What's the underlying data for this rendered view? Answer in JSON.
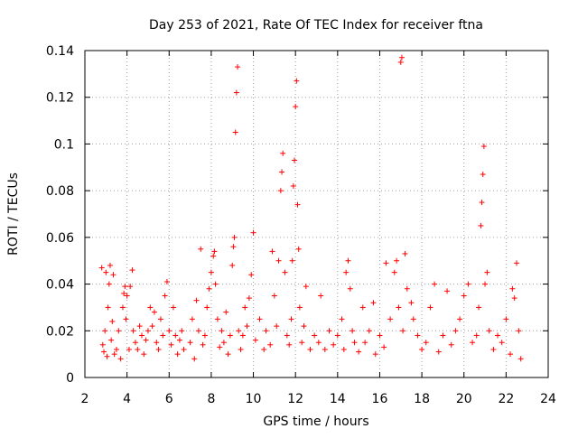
{
  "chart_data": {
    "type": "scatter",
    "title": "Day 253 of 2021, Rate Of TEC Index for receiver ftna",
    "xlabel": "GPS time / hours",
    "ylabel": "ROTI / TECUs",
    "xlim": [
      2,
      24
    ],
    "ylim": [
      0,
      0.14
    ],
    "x_ticks": [
      2,
      4,
      6,
      8,
      10,
      12,
      14,
      16,
      18,
      20,
      22,
      24
    ],
    "y_ticks": [
      0,
      0.02,
      0.04,
      0.06,
      0.08,
      0.1,
      0.12,
      0.14
    ],
    "x_tick_labels": [
      "2",
      "4",
      "6",
      "8",
      "10",
      "12",
      "14",
      "16",
      "18",
      "20",
      "22",
      "24"
    ],
    "y_tick_labels": [
      "0",
      "0.02",
      "0.04",
      "0.06",
      "0.08",
      "0.1",
      "0.12",
      "0.14"
    ],
    "grid": true,
    "legend": "none",
    "marker": "plus",
    "color": "#ff0000",
    "series": [
      {
        "values": [
          [
            2.8,
            0.047
          ],
          [
            2.85,
            0.014
          ],
          [
            2.9,
            0.011
          ],
          [
            2.95,
            0.02
          ],
          [
            3.0,
            0.045
          ],
          [
            3.05,
            0.009
          ],
          [
            3.1,
            0.03
          ],
          [
            3.15,
            0.04
          ],
          [
            3.2,
            0.048
          ],
          [
            3.25,
            0.016
          ],
          [
            3.3,
            0.024
          ],
          [
            3.35,
            0.044
          ],
          [
            3.4,
            0.01
          ],
          [
            3.5,
            0.012
          ],
          [
            3.6,
            0.02
          ],
          [
            3.7,
            0.008
          ],
          [
            3.8,
            0.03
          ],
          [
            3.85,
            0.036
          ],
          [
            3.9,
            0.039
          ],
          [
            3.95,
            0.025
          ],
          [
            4.0,
            0.035
          ],
          [
            4.1,
            0.012
          ],
          [
            4.15,
            0.039
          ],
          [
            4.25,
            0.046
          ],
          [
            4.3,
            0.02
          ],
          [
            4.4,
            0.015
          ],
          [
            4.5,
            0.012
          ],
          [
            4.6,
            0.022
          ],
          [
            4.7,
            0.018
          ],
          [
            4.8,
            0.01
          ],
          [
            4.9,
            0.016
          ],
          [
            5.0,
            0.02
          ],
          [
            5.1,
            0.03
          ],
          [
            5.2,
            0.022
          ],
          [
            5.3,
            0.028
          ],
          [
            5.4,
            0.015
          ],
          [
            5.5,
            0.012
          ],
          [
            5.6,
            0.025
          ],
          [
            5.7,
            0.018
          ],
          [
            5.8,
            0.035
          ],
          [
            5.9,
            0.041
          ],
          [
            6.0,
            0.02
          ],
          [
            6.1,
            0.014
          ],
          [
            6.2,
            0.03
          ],
          [
            6.3,
            0.018
          ],
          [
            6.4,
            0.01
          ],
          [
            6.5,
            0.016
          ],
          [
            6.6,
            0.02
          ],
          [
            6.7,
            0.012
          ],
          [
            7.0,
            0.015
          ],
          [
            7.1,
            0.025
          ],
          [
            7.2,
            0.008
          ],
          [
            7.3,
            0.033
          ],
          [
            7.4,
            0.02
          ],
          [
            7.5,
            0.055
          ],
          [
            7.6,
            0.014
          ],
          [
            7.7,
            0.018
          ],
          [
            7.8,
            0.03
          ],
          [
            7.9,
            0.038
          ],
          [
            8.0,
            0.045
          ],
          [
            8.1,
            0.052
          ],
          [
            8.15,
            0.054
          ],
          [
            8.2,
            0.04
          ],
          [
            8.3,
            0.025
          ],
          [
            8.4,
            0.013
          ],
          [
            8.5,
            0.02
          ],
          [
            8.6,
            0.015
          ],
          [
            8.7,
            0.028
          ],
          [
            8.8,
            0.01
          ],
          [
            8.9,
            0.018
          ],
          [
            9.0,
            0.048
          ],
          [
            9.05,
            0.056
          ],
          [
            9.1,
            0.06
          ],
          [
            9.15,
            0.105
          ],
          [
            9.2,
            0.122
          ],
          [
            9.25,
            0.133
          ],
          [
            9.3,
            0.02
          ],
          [
            9.4,
            0.012
          ],
          [
            9.5,
            0.018
          ],
          [
            9.6,
            0.03
          ],
          [
            9.7,
            0.022
          ],
          [
            9.8,
            0.034
          ],
          [
            9.9,
            0.044
          ],
          [
            10.0,
            0.062
          ],
          [
            10.1,
            0.016
          ],
          [
            10.3,
            0.025
          ],
          [
            10.5,
            0.012
          ],
          [
            10.6,
            0.02
          ],
          [
            10.8,
            0.014
          ],
          [
            10.9,
            0.054
          ],
          [
            11.0,
            0.035
          ],
          [
            11.1,
            0.022
          ],
          [
            11.2,
            0.05
          ],
          [
            11.3,
            0.08
          ],
          [
            11.35,
            0.088
          ],
          [
            11.4,
            0.096
          ],
          [
            11.5,
            0.045
          ],
          [
            11.6,
            0.018
          ],
          [
            11.7,
            0.014
          ],
          [
            11.8,
            0.025
          ],
          [
            11.85,
            0.05
          ],
          [
            11.9,
            0.082
          ],
          [
            11.95,
            0.093
          ],
          [
            12.0,
            0.116
          ],
          [
            12.05,
            0.127
          ],
          [
            12.1,
            0.074
          ],
          [
            12.15,
            0.055
          ],
          [
            12.2,
            0.03
          ],
          [
            12.3,
            0.015
          ],
          [
            12.4,
            0.022
          ],
          [
            12.5,
            0.039
          ],
          [
            12.7,
            0.012
          ],
          [
            12.9,
            0.018
          ],
          [
            13.1,
            0.015
          ],
          [
            13.2,
            0.035
          ],
          [
            13.4,
            0.012
          ],
          [
            13.6,
            0.02
          ],
          [
            13.8,
            0.014
          ],
          [
            14.0,
            0.018
          ],
          [
            14.2,
            0.025
          ],
          [
            14.3,
            0.012
          ],
          [
            14.4,
            0.045
          ],
          [
            14.5,
            0.05
          ],
          [
            14.6,
            0.038
          ],
          [
            14.7,
            0.02
          ],
          [
            14.8,
            0.015
          ],
          [
            15.0,
            0.011
          ],
          [
            15.2,
            0.03
          ],
          [
            15.3,
            0.015
          ],
          [
            15.5,
            0.02
          ],
          [
            15.7,
            0.032
          ],
          [
            15.8,
            0.01
          ],
          [
            16.0,
            0.018
          ],
          [
            16.2,
            0.013
          ],
          [
            16.3,
            0.049
          ],
          [
            16.5,
            0.025
          ],
          [
            16.7,
            0.045
          ],
          [
            16.8,
            0.05
          ],
          [
            16.9,
            0.03
          ],
          [
            17.0,
            0.135
          ],
          [
            17.05,
            0.137
          ],
          [
            17.1,
            0.02
          ],
          [
            17.2,
            0.053
          ],
          [
            17.3,
            0.038
          ],
          [
            17.5,
            0.032
          ],
          [
            17.6,
            0.025
          ],
          [
            17.8,
            0.018
          ],
          [
            18.0,
            0.012
          ],
          [
            18.2,
            0.015
          ],
          [
            18.4,
            0.03
          ],
          [
            18.6,
            0.04
          ],
          [
            18.8,
            0.011
          ],
          [
            19.0,
            0.018
          ],
          [
            19.2,
            0.037
          ],
          [
            19.4,
            0.014
          ],
          [
            19.6,
            0.02
          ],
          [
            19.8,
            0.025
          ],
          [
            20.0,
            0.035
          ],
          [
            20.2,
            0.04
          ],
          [
            20.4,
            0.015
          ],
          [
            20.6,
            0.018
          ],
          [
            20.7,
            0.03
          ],
          [
            20.8,
            0.065
          ],
          [
            20.85,
            0.075
          ],
          [
            20.9,
            0.087
          ],
          [
            20.95,
            0.099
          ],
          [
            21.0,
            0.04
          ],
          [
            21.1,
            0.045
          ],
          [
            21.2,
            0.02
          ],
          [
            21.4,
            0.012
          ],
          [
            21.6,
            0.018
          ],
          [
            21.8,
            0.015
          ],
          [
            22.0,
            0.025
          ],
          [
            22.2,
            0.01
          ],
          [
            22.3,
            0.038
          ],
          [
            22.4,
            0.034
          ],
          [
            22.5,
            0.049
          ],
          [
            22.6,
            0.02
          ],
          [
            22.7,
            0.008
          ]
        ]
      }
    ]
  }
}
